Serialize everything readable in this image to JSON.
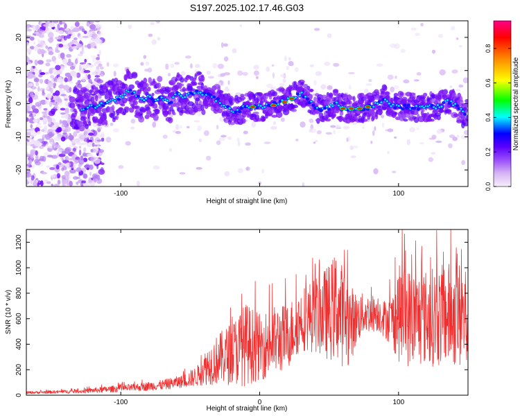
{
  "figure": {
    "title": "S197.2025.102.17.46.G03"
  },
  "chart_data": [
    {
      "type": "heatmap",
      "xlabel": "Height of straight line (km)",
      "ylabel": "Frequency (Hz)",
      "xlim": [
        -168,
        150
      ],
      "ylim": [
        -25,
        25
      ],
      "xticks": [
        -100,
        0,
        100
      ],
      "yticks": [
        -20,
        -10,
        0,
        10,
        20
      ],
      "grid": false,
      "colorbar": {
        "label": "Normalized spectral amplitude",
        "range": [
          0,
          0.96
        ],
        "ticks": [
          0.0,
          0.2,
          0.4,
          0.6,
          0.8
        ],
        "colormap": "rainbow",
        "colors": [
          "#f3e8fb",
          "#c9a6f0",
          "#7b00ff",
          "#0000ff",
          "#00ffff",
          "#00ff00",
          "#ffff00",
          "#ff8000",
          "#ff0000",
          "#ff0088"
        ]
      },
      "ridge": {
        "description_values": "dominant frequency (Hz) vs height (km)",
        "x": [
          -130,
          -120,
          -110,
          -100,
          -95,
          -90,
          -85,
          -80,
          -75,
          -70,
          -65,
          -60,
          -55,
          -50,
          -45,
          -40,
          -35,
          -30,
          -25,
          -20,
          -15,
          -10,
          -5,
          0,
          5,
          10,
          15,
          20,
          25,
          30,
          35,
          40,
          45,
          50,
          55,
          60,
          65,
          70,
          75,
          80,
          85,
          90,
          95,
          100,
          105,
          110,
          115,
          120,
          125,
          130,
          135,
          140,
          145,
          148
        ],
        "y": [
          -1.5,
          -1,
          0,
          2,
          4,
          3,
          1,
          2,
          1,
          2,
          0,
          3,
          2,
          3,
          4,
          3,
          2,
          1,
          -1,
          -2,
          -2,
          -1,
          -1,
          -1,
          -0.5,
          0,
          0.5,
          1,
          2,
          3,
          1,
          -1,
          -2,
          -1,
          0,
          -1,
          -1.5,
          -1.5,
          -1.5,
          -1,
          0,
          1,
          -0.5,
          -1,
          -1,
          -1,
          -1.5,
          -1,
          -1,
          -1,
          1,
          0,
          -2,
          -3
        ]
      }
    },
    {
      "type": "line",
      "xlabel": "Height of straight line (km)",
      "ylabel": "SNR (10 * v/v)",
      "xlim": [
        -168,
        150
      ],
      "ylim": [
        0,
        1300
      ],
      "xticks": [
        -100,
        0,
        100
      ],
      "yticks": [
        0,
        200,
        400,
        600,
        800,
        1000,
        1200
      ],
      "grid": false,
      "series": [
        {
          "color": "#f03030",
          "envelope_x": [
            -168,
            -150,
            -130,
            -110,
            -90,
            -70,
            -55,
            -45,
            -38,
            -30,
            -20,
            -10,
            0,
            10,
            20,
            30,
            40,
            50,
            55,
            60,
            65,
            70,
            75,
            80,
            85,
            90,
            95,
            100,
            105,
            110,
            120,
            130,
            140,
            150
          ],
          "envelope_mean": [
            20,
            25,
            30,
            45,
            60,
            80,
            110,
            150,
            230,
            280,
            330,
            400,
            380,
            420,
            460,
            600,
            630,
            650,
            700,
            620,
            560,
            600,
            640,
            640,
            650,
            600,
            580,
            640,
            620,
            600,
            610,
            620,
            640,
            600
          ],
          "envelope_amp": [
            10,
            12,
            15,
            25,
            30,
            40,
            50,
            80,
            150,
            200,
            250,
            330,
            260,
            280,
            260,
            250,
            300,
            380,
            430,
            400,
            320,
            200,
            160,
            150,
            150,
            150,
            200,
            380,
            400,
            380,
            380,
            400,
            420,
            450
          ]
        }
      ]
    }
  ]
}
